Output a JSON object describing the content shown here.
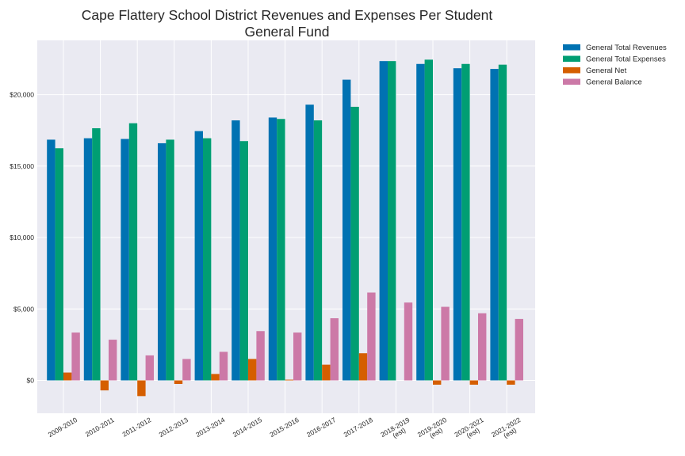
{
  "chart_data": {
    "type": "bar",
    "title": "Cape Flattery School District Revenues and Expenses Per Student",
    "subtitle": "General Fund",
    "xlabel": "",
    "ylabel": "",
    "categories": [
      [
        "2009-2010"
      ],
      [
        "2010-2011"
      ],
      [
        "2011-2012"
      ],
      [
        "2012-2013"
      ],
      [
        "2013-2014"
      ],
      [
        "2014-2015"
      ],
      [
        "2015-2016"
      ],
      [
        "2016-2017"
      ],
      [
        "2017-2018"
      ],
      [
        "2018-2019",
        "(est)"
      ],
      [
        "2019-2020",
        "(est)"
      ],
      [
        "2020-2021",
        "(est)"
      ],
      [
        "2021-2022",
        "(est)"
      ]
    ],
    "series": [
      {
        "name": "General Total Revenues",
        "color": "#0072b2",
        "values": [
          16850,
          16950,
          16900,
          16600,
          17450,
          18200,
          18400,
          19300,
          21050,
          22350,
          22150,
          21850,
          21800
        ]
      },
      {
        "name": "General Total Expenses",
        "color": "#009e73",
        "values": [
          16250,
          17650,
          18000,
          16850,
          16950,
          16750,
          18300,
          18200,
          19150,
          22350,
          22450,
          22150,
          22100
        ]
      },
      {
        "name": "General Net",
        "color": "#d55e00",
        "values": [
          550,
          -700,
          -1100,
          -250,
          450,
          1500,
          50,
          1100,
          1900,
          0,
          -300,
          -300,
          -300
        ]
      },
      {
        "name": "General Balance",
        "color": "#cc79a7",
        "values": [
          3350,
          2850,
          1750,
          1500,
          2000,
          3450,
          3350,
          4350,
          6150,
          5450,
          5150,
          4700,
          4300
        ]
      }
    ],
    "ylim": [
      -2300,
      23800
    ],
    "yticks": [
      0,
      5000,
      10000,
      15000,
      20000
    ],
    "ytick_labels": [
      "$0",
      "$5,000",
      "$10,000",
      "$15,000",
      "$20,000"
    ],
    "grid": true,
    "legend_position": "outside-top-right",
    "background": "#eaeaf2"
  }
}
